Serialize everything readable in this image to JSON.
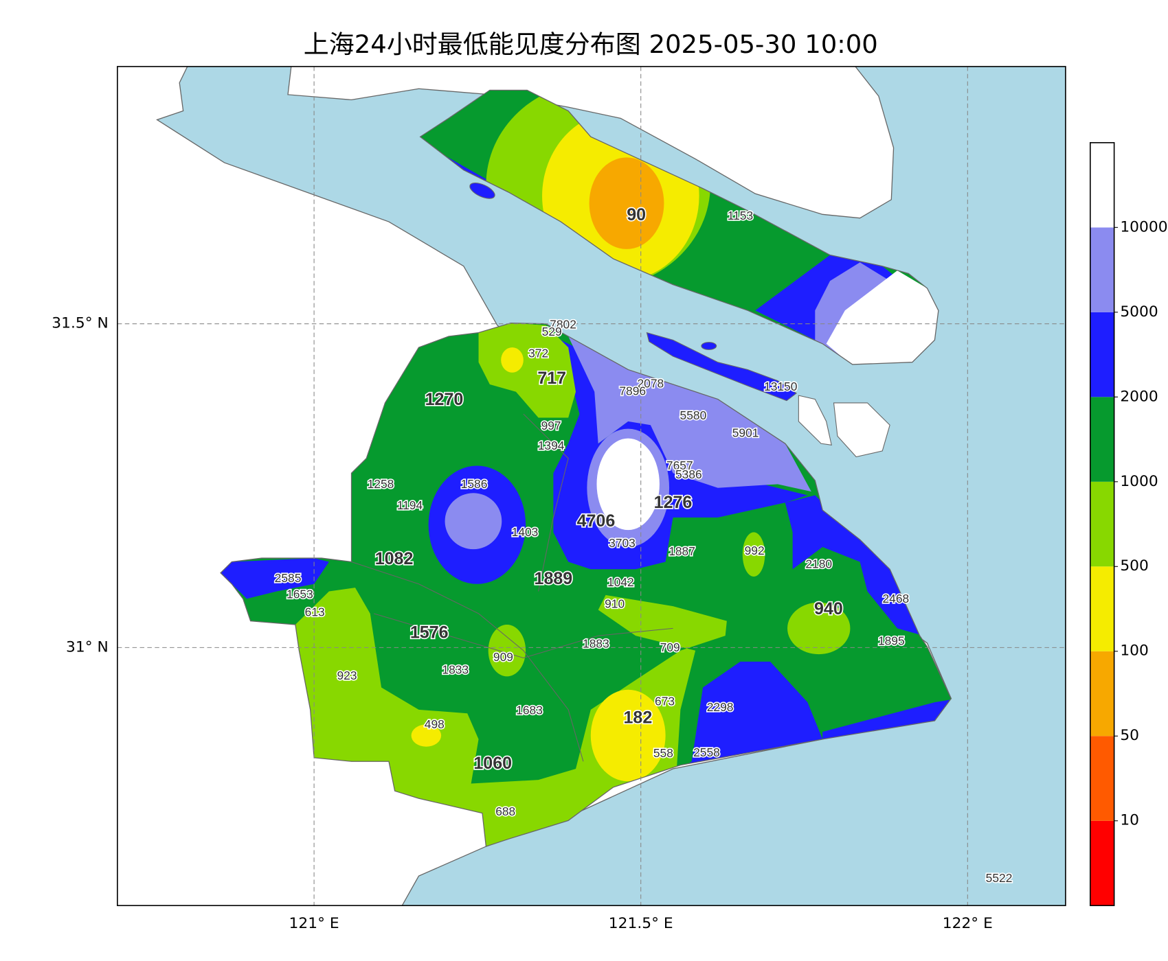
{
  "title": "上海24小时最低能见度分布图 2025-05-30 10:00",
  "map": {
    "lon_ticks": [
      {
        "value": 121,
        "label": "121° E"
      },
      {
        "value": 121.5,
        "label": "121.5° E"
      },
      {
        "value": 122,
        "label": "122° E"
      }
    ],
    "lat_ticks": [
      {
        "value": 31.5,
        "label": "31.5° N"
      },
      {
        "value": 31,
        "label": "31° N"
      }
    ],
    "stations": [
      90,
      1153,
      7802,
      529,
      372,
      717,
      1270,
      2078,
      7896,
      13150,
      5580,
      5901,
      997,
      1394,
      7657,
      5386,
      1258,
      1586,
      1194,
      1276,
      4706,
      1403,
      3703,
      1887,
      992,
      1082,
      2180,
      2585,
      1889,
      1042,
      1653,
      2468,
      940,
      910,
      613,
      1576,
      1895,
      1883,
      709,
      909,
      1833,
      923,
      673,
      2298,
      1683,
      182,
      498,
      558,
      2558,
      1060,
      688,
      5522
    ]
  },
  "colorbar": {
    "levels": [
      10,
      50,
      100,
      500,
      1000,
      2000,
      5000,
      10000
    ],
    "colors": [
      "#ff0000",
      "#ff5a00",
      "#f7a800",
      "#f5ec00",
      "#88d800",
      "#069a2e",
      "#1e1eff",
      "#8b8bf0",
      "#ffffff"
    ]
  }
}
